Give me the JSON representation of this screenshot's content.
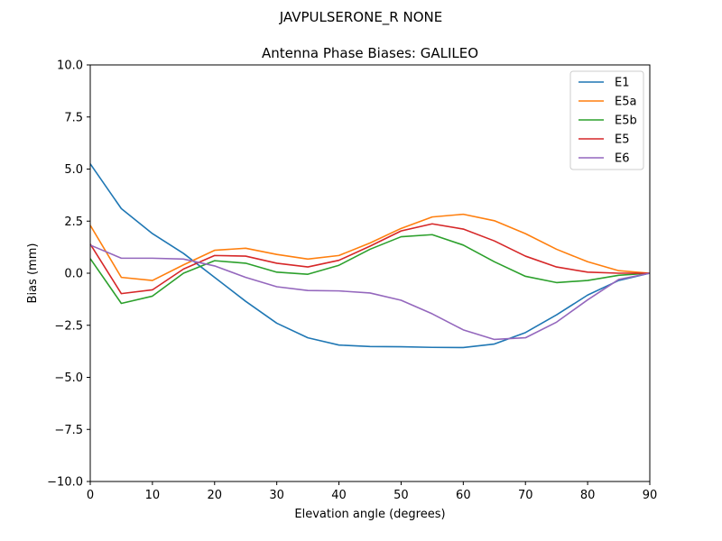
{
  "chart_data": {
    "type": "line",
    "suptitle": "JAVPULSERONE_R  NONE",
    "title": "Antenna Phase Biases: GALILEO",
    "xlabel": "Elevation angle (degrees)",
    "ylabel": "Bias (mm)",
    "xlim": [
      0,
      90
    ],
    "ylim": [
      -10,
      10
    ],
    "xticks": [
      "0",
      "10",
      "20",
      "30",
      "40",
      "50",
      "60",
      "70",
      "80",
      "90"
    ],
    "yticks": [
      "10.0",
      "7.5",
      "5.0",
      "2.5",
      "0.0",
      "−2.5",
      "−5.0",
      "−7.5",
      "−10.0"
    ],
    "grid": false,
    "legend_position": "top-right",
    "x": [
      0,
      5,
      10,
      15,
      20,
      25,
      30,
      35,
      40,
      45,
      50,
      55,
      60,
      65,
      70,
      75,
      80,
      85,
      90
    ],
    "series": [
      {
        "name": "E1",
        "color": "#1f77b4",
        "values": [
          5.25,
          3.1,
          1.9,
          0.95,
          -0.2,
          -1.35,
          -2.4,
          -3.1,
          -3.45,
          -3.52,
          -3.53,
          -3.56,
          -3.57,
          -3.4,
          -2.85,
          -2.0,
          -1.05,
          -0.35,
          0.0
        ]
      },
      {
        "name": "E5a",
        "color": "#ff7f0e",
        "values": [
          2.3,
          -0.2,
          -0.35,
          0.4,
          1.1,
          1.2,
          0.9,
          0.68,
          0.85,
          1.45,
          2.15,
          2.7,
          2.83,
          2.52,
          1.9,
          1.15,
          0.55,
          0.12,
          0.0
        ]
      },
      {
        "name": "E5b",
        "color": "#2ca02c",
        "values": [
          0.7,
          -1.45,
          -1.1,
          0.0,
          0.6,
          0.48,
          0.05,
          -0.05,
          0.38,
          1.15,
          1.75,
          1.85,
          1.35,
          0.55,
          -0.15,
          -0.45,
          -0.35,
          -0.1,
          0.0
        ]
      },
      {
        "name": "E5",
        "color": "#d62728",
        "values": [
          1.4,
          -0.98,
          -0.8,
          0.2,
          0.85,
          0.82,
          0.48,
          0.3,
          0.62,
          1.3,
          2.03,
          2.37,
          2.12,
          1.55,
          0.82,
          0.3,
          0.05,
          0.0,
          0.0
        ]
      },
      {
        "name": "E6",
        "color": "#9467bd",
        "values": [
          1.35,
          0.72,
          0.72,
          0.68,
          0.35,
          -0.2,
          -0.65,
          -0.83,
          -0.85,
          -0.95,
          -1.3,
          -1.95,
          -2.72,
          -3.18,
          -3.1,
          -2.35,
          -1.28,
          -0.3,
          0.0
        ]
      }
    ]
  }
}
